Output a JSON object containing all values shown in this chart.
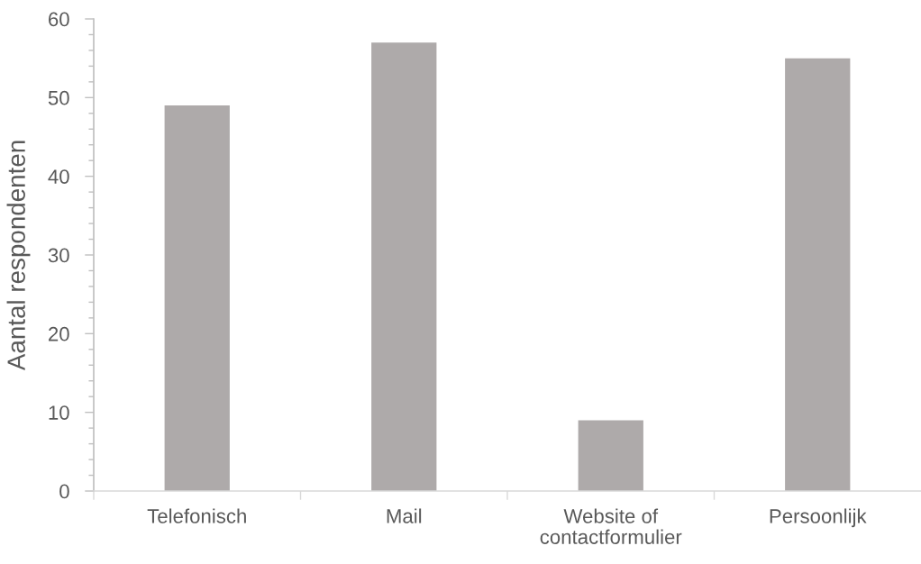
{
  "chart_data": {
    "type": "bar",
    "categories": [
      "Telefonisch",
      "Mail",
      "Website of\ncontactformulier",
      "Persoonlijk"
    ],
    "values": [
      49,
      57,
      9,
      55
    ],
    "color": "#aeaaaa",
    "ylabel": "Aantal respondenten",
    "ylim": [
      0,
      60
    ],
    "yticks": [
      0,
      {
        "value": 2,
        "label": null
      },
      {
        "value": 4,
        "label": null
      },
      {
        "value": 6,
        "label": null
      },
      {
        "value": 8,
        "label": null
      },
      10,
      {
        "value": 12,
        "label": null
      },
      {
        "value": 14,
        "label": null
      },
      {
        "value": 16,
        "label": null
      },
      {
        "value": 18,
        "label": null
      },
      20,
      {
        "value": 22,
        "label": null
      },
      {
        "value": 24,
        "label": null
      },
      {
        "value": 26,
        "label": null
      },
      {
        "value": 28,
        "label": null
      },
      30,
      {
        "value": 32,
        "label": null
      },
      {
        "value": 34,
        "label": null
      },
      {
        "value": 36,
        "label": null
      },
      {
        "value": 38,
        "label": null
      },
      40,
      {
        "value": 42,
        "label": null
      },
      {
        "value": 44,
        "label": null
      },
      {
        "value": 46,
        "label": null
      },
      {
        "value": 48,
        "label": null
      },
      50,
      {
        "value": 52,
        "label": null
      },
      {
        "value": 54,
        "label": null
      },
      {
        "value": 56,
        "label": null
      },
      {
        "value": 58,
        "label": null
      },
      60
    ]
  }
}
